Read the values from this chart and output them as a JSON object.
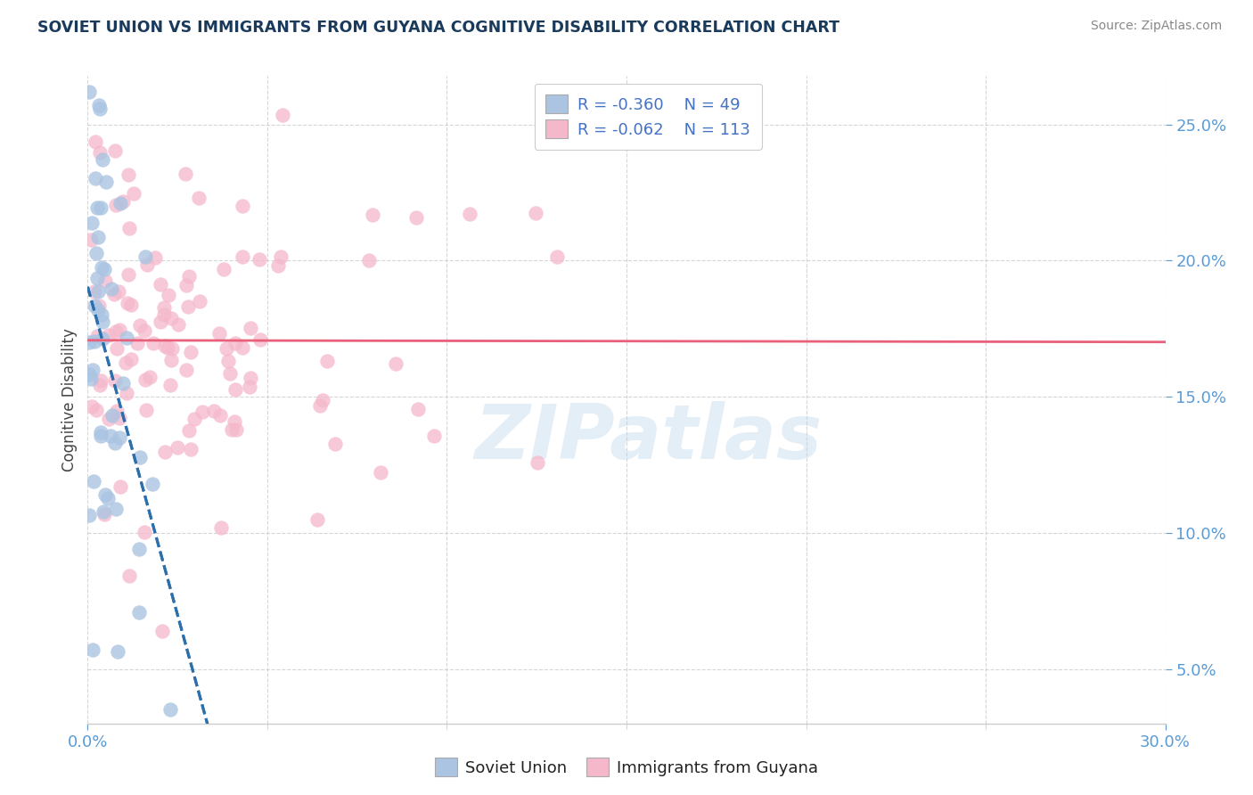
{
  "title": "SOVIET UNION VS IMMIGRANTS FROM GUYANA COGNITIVE DISABILITY CORRELATION CHART",
  "source": "Source: ZipAtlas.com",
  "ylabel": "Cognitive Disability",
  "yticks": [
    0.05,
    0.1,
    0.15,
    0.2,
    0.25
  ],
  "xmin": 0.0,
  "xmax": 0.3,
  "ymin": 0.03,
  "ymax": 0.268,
  "series1_name": "Soviet Union",
  "series1_color": "#aac4e2",
  "series1_R": -0.36,
  "series1_N": 49,
  "series1_line_color": "#2c6fad",
  "series2_name": "Immigrants from Guyana",
  "series2_color": "#f5b8cb",
  "series2_R": -0.062,
  "series2_N": 113,
  "series2_line_color": "#e8607a",
  "watermark_text": "ZIPatlas",
  "legend_R1": "-0.360",
  "legend_N1": "49",
  "legend_R2": "-0.062",
  "legend_N2": "113",
  "title_color": "#1a3a5c",
  "source_color": "#888888",
  "tick_color": "#5b9bd5",
  "grid_color": "#cccccc"
}
